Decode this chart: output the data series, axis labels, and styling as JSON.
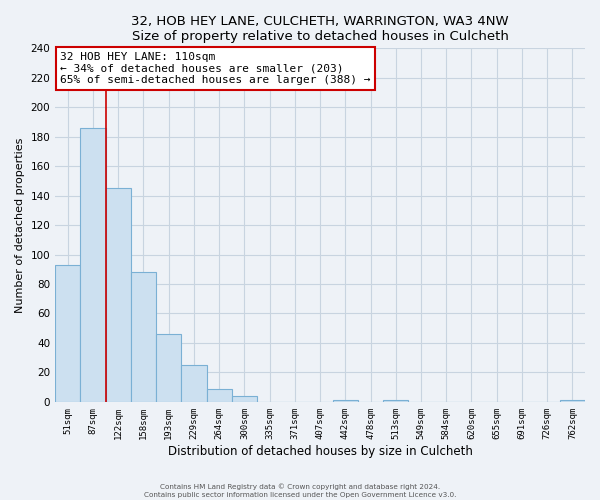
{
  "title": "32, HOB HEY LANE, CULCHETH, WARRINGTON, WA3 4NW",
  "subtitle": "Size of property relative to detached houses in Culcheth",
  "xlabel": "Distribution of detached houses by size in Culcheth",
  "ylabel": "Number of detached properties",
  "bar_labels": [
    "51sqm",
    "87sqm",
    "122sqm",
    "158sqm",
    "193sqm",
    "229sqm",
    "264sqm",
    "300sqm",
    "335sqm",
    "371sqm",
    "407sqm",
    "442sqm",
    "478sqm",
    "513sqm",
    "549sqm",
    "584sqm",
    "620sqm",
    "655sqm",
    "691sqm",
    "726sqm",
    "762sqm"
  ],
  "bar_values": [
    93,
    186,
    145,
    88,
    46,
    25,
    9,
    4,
    0,
    0,
    0,
    1,
    0,
    1,
    0,
    0,
    0,
    0,
    0,
    0,
    1
  ],
  "bar_color": "#cce0f0",
  "bar_edge_color": "#7ab0d4",
  "highlight_line_color": "#cc0000",
  "annotation_text": "32 HOB HEY LANE: 110sqm\n← 34% of detached houses are smaller (203)\n65% of semi-detached houses are larger (388) →",
  "annotation_box_color": "white",
  "annotation_box_edge_color": "#cc0000",
  "ylim": [
    0,
    240
  ],
  "yticks": [
    0,
    20,
    40,
    60,
    80,
    100,
    120,
    140,
    160,
    180,
    200,
    220,
    240
  ],
  "background_color": "#eef2f7",
  "grid_color": "#c8d4e0",
  "footer_line1": "Contains HM Land Registry data © Crown copyright and database right 2024.",
  "footer_line2": "Contains public sector information licensed under the Open Government Licence v3.0."
}
